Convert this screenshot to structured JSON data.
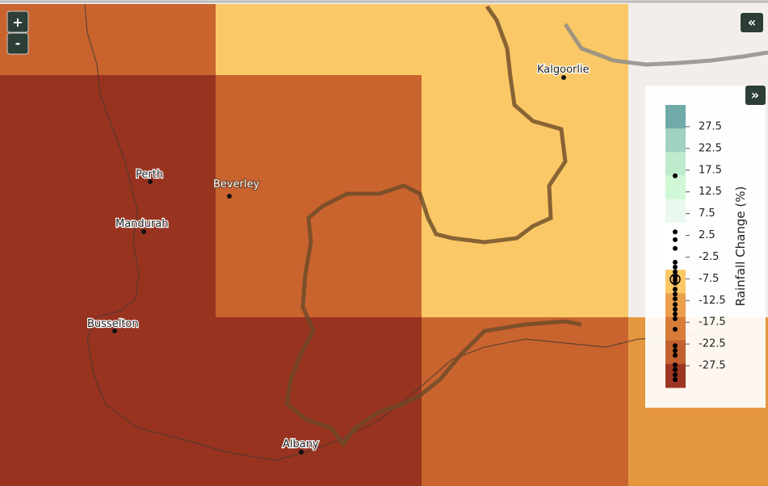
{
  "map": {
    "cities": [
      {
        "label": "Kalgoorlie"
      },
      {
        "label": "Perth"
      },
      {
        "label": "Beverley"
      },
      {
        "label": "Mandurah"
      },
      {
        "label": "Busselton"
      },
      {
        "label": "Albany"
      }
    ],
    "controls": {
      "zoom_in": "+",
      "zoom_out": "-",
      "collapse": "«",
      "expand": "»"
    },
    "legend": {
      "title": "Rainfall Change (%)",
      "range": [
        -32.5,
        32.5
      ],
      "ticks": [
        27.5,
        22.5,
        17.5,
        12.5,
        7.5,
        2.5,
        -2.5,
        -7.5,
        -12.5,
        -17.5,
        -22.5,
        -27.5
      ],
      "band_colors": [
        "#6fa9a8",
        "#a0d2c0",
        "#bdebcb",
        "#d0f8d6",
        "#eaf8ef",
        "#ffffff",
        "#ffffff",
        "#fcc865",
        "#eb9f4c",
        "#d77d38",
        "#c46030",
        "#9c3522"
      ],
      "points": [
        16.2,
        3.3,
        1.5,
        -0.5,
        -3.7,
        -4.8,
        -5.9,
        -7.0,
        -7.8,
        -8.5,
        -9.9,
        -11.0,
        -12.1,
        -13.4,
        -14.5,
        -15.6,
        -16.7,
        -19.1,
        -22.9,
        -24.0,
        -25.1,
        -27.3,
        -28.4,
        -29.6,
        -30.7
      ],
      "highlight": -7.6
    }
  }
}
